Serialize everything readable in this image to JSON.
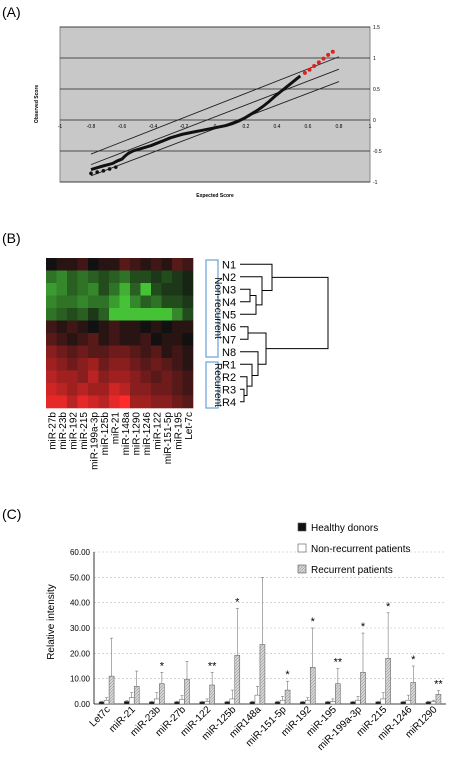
{
  "panels": {
    "a_label": "(A)",
    "b_label": "(B)",
    "c_label": "(C)"
  },
  "chart_data": [
    {
      "type": "scatter",
      "xlabel": "Expected Score",
      "ylabel": "Observed Score",
      "xlim": [
        -1,
        1
      ],
      "ylim": [
        -1,
        1.5
      ],
      "x_ticks": [
        "-1",
        "-0.8",
        "-0.6",
        "-0.4",
        "-0.2",
        "0",
        "0.2",
        "0.4",
        "0.6",
        "0.8",
        "1"
      ],
      "y_ticks": [
        "-1",
        "-0.5",
        "0",
        "0.5",
        "1",
        "1.5"
      ],
      "grid": true,
      "background": "#c8c8c8",
      "colors": {
        "points": "#111111",
        "significant": "#e02020",
        "lines": "#222222"
      },
      "reference_lines": [
        {
          "x": [
            -0.8,
            0.8
          ],
          "y": [
            -0.9,
            0.62
          ]
        },
        {
          "x": [
            -0.8,
            0.8
          ],
          "y": [
            -0.72,
            0.82
          ]
        },
        {
          "x": [
            -0.8,
            0.8
          ],
          "y": [
            -0.55,
            1.02
          ]
        }
      ],
      "curve_points": [
        [
          -0.8,
          -0.8
        ],
        [
          -0.76,
          -0.77
        ],
        [
          -0.72,
          -0.74
        ],
        [
          -0.69,
          -0.72
        ],
        [
          -0.66,
          -0.7
        ],
        [
          -0.63,
          -0.66
        ],
        [
          -0.6,
          -0.63
        ],
        [
          -0.58,
          -0.58
        ],
        [
          -0.56,
          -0.54
        ],
        [
          -0.53,
          -0.5
        ],
        [
          -0.49,
          -0.47
        ],
        [
          -0.45,
          -0.44
        ],
        [
          -0.41,
          -0.41
        ],
        [
          -0.37,
          -0.37
        ],
        [
          -0.33,
          -0.33
        ],
        [
          -0.29,
          -0.29
        ],
        [
          -0.25,
          -0.26
        ],
        [
          -0.21,
          -0.23
        ],
        [
          -0.17,
          -0.21
        ],
        [
          -0.13,
          -0.19
        ],
        [
          -0.09,
          -0.17
        ],
        [
          -0.05,
          -0.15
        ],
        [
          -0.01,
          -0.13
        ],
        [
          0.03,
          -0.11
        ],
        [
          0.07,
          -0.09
        ],
        [
          0.11,
          -0.06
        ],
        [
          0.15,
          -0.02
        ],
        [
          0.19,
          0.03
        ],
        [
          0.23,
          0.09
        ],
        [
          0.27,
          0.15
        ],
        [
          0.31,
          0.22
        ],
        [
          0.35,
          0.3
        ],
        [
          0.39,
          0.39
        ],
        [
          0.43,
          0.47
        ],
        [
          0.47,
          0.55
        ],
        [
          0.51,
          0.63
        ],
        [
          0.55,
          0.71
        ]
      ],
      "significant_points": [
        [
          0.58,
          0.76
        ],
        [
          0.61,
          0.81
        ],
        [
          0.64,
          0.87
        ],
        [
          0.67,
          0.93
        ],
        [
          0.7,
          0.99
        ],
        [
          0.73,
          1.05
        ],
        [
          0.76,
          1.1
        ]
      ],
      "scatter_points": [
        [
          -0.8,
          -0.86
        ],
        [
          -0.76,
          -0.84
        ],
        [
          -0.72,
          -0.82
        ],
        [
          -0.68,
          -0.79
        ],
        [
          -0.64,
          -0.76
        ]
      ]
    },
    {
      "type": "heatmap",
      "columns": [
        "miR-27b",
        "miR-23b",
        "miR-192",
        "miR-215",
        "miR-199a-3p",
        "miR-125b",
        "miR-21",
        "miR-148a",
        "miR-1290",
        "miR-1246",
        "miR-122",
        "miR-151-5p",
        "miR-195",
        "Let-7c"
      ],
      "rows": [
        "N1",
        "N2",
        "N3",
        "N4",
        "N5",
        "N6",
        "N7",
        "N8",
        "R1",
        "R2",
        "R3",
        "R4"
      ],
      "group_labels": [
        "Non-recurrent",
        "Recurrent"
      ],
      "values": [
        [
          0.0,
          0.1,
          0.1,
          0.2,
          0.0,
          0.1,
          0.1,
          0.3,
          0.2,
          0.1,
          0.2,
          0.1,
          0.3,
          0.2
        ],
        [
          -0.5,
          -0.6,
          -0.4,
          -0.5,
          -0.4,
          -0.3,
          -0.4,
          -0.5,
          -0.3,
          -0.3,
          -0.2,
          -0.3,
          -0.2,
          -0.1
        ],
        [
          -0.7,
          -0.6,
          -0.4,
          -0.5,
          -0.6,
          -0.3,
          -0.5,
          -0.8,
          -0.4,
          -0.9,
          -0.3,
          -0.2,
          -0.2,
          -0.1
        ],
        [
          -0.6,
          -0.5,
          -0.5,
          -0.6,
          -0.5,
          -0.5,
          -0.7,
          -0.9,
          -0.6,
          -0.4,
          -0.5,
          -0.3,
          -0.3,
          -0.2
        ],
        [
          -0.5,
          -0.4,
          -0.3,
          -0.4,
          -0.2,
          -0.4,
          -0.9,
          -0.9,
          -0.9,
          -0.9,
          -0.9,
          -0.9,
          -0.6,
          -0.3
        ],
        [
          0.2,
          0.1,
          0.2,
          0.1,
          0.0,
          0.1,
          0.2,
          0.1,
          0.1,
          0.0,
          0.1,
          0.0,
          0.1,
          0.1
        ],
        [
          0.3,
          0.2,
          0.1,
          0.2,
          0.3,
          0.1,
          0.2,
          0.1,
          0.1,
          0.2,
          0.0,
          0.1,
          0.1,
          0.0
        ],
        [
          0.5,
          0.4,
          0.3,
          0.4,
          0.3,
          0.3,
          0.4,
          0.4,
          0.3,
          0.2,
          0.3,
          0.1,
          0.2,
          0.1
        ],
        [
          0.6,
          0.5,
          0.4,
          0.5,
          0.6,
          0.4,
          0.5,
          0.5,
          0.4,
          0.3,
          0.4,
          0.3,
          0.2,
          0.1
        ],
        [
          0.7,
          0.6,
          0.6,
          0.5,
          0.7,
          0.5,
          0.6,
          0.6,
          0.5,
          0.4,
          0.3,
          0.4,
          0.3,
          0.2
        ],
        [
          0.8,
          0.7,
          0.6,
          0.7,
          0.6,
          0.6,
          0.8,
          0.7,
          0.5,
          0.5,
          0.4,
          0.4,
          0.3,
          0.2
        ],
        [
          0.9,
          0.9,
          0.7,
          0.9,
          0.8,
          0.7,
          0.9,
          1.0,
          0.6,
          0.6,
          0.5,
          0.5,
          0.4,
          0.3
        ]
      ],
      "colors": {
        "low": "#4cd63a",
        "mid": "#111111",
        "high": "#ff2a2a",
        "frame": "#6aa0d8"
      }
    },
    {
      "type": "bar",
      "categories": [
        "Let7c",
        "miR-21",
        "miR-23b",
        "miR-27b",
        "miR-122",
        "miR-125b",
        "miR148a",
        "miR-151-5p",
        "miR-192",
        "miR-195",
        "miR-199a-3p",
        "miR-215",
        "miR-1246",
        "miR1290"
      ],
      "series": [
        {
          "name": "Healthy donors",
          "values": [
            0.8,
            1.0,
            0.8,
            0.8,
            0.8,
            0.8,
            0.8,
            0.8,
            0.8,
            0.8,
            0.8,
            0.8,
            0.8,
            0.8
          ],
          "errors": [
            0.3,
            0.3,
            0.3,
            0.3,
            0.3,
            0.3,
            0.3,
            0.3,
            0.3,
            0.3,
            0.3,
            0.3,
            0.3,
            0.3
          ],
          "color": "#111111"
        },
        {
          "name": "Non-recurrent patients",
          "values": [
            1.5,
            2.5,
            2.0,
            1.8,
            1.0,
            2.0,
            3.5,
            1.5,
            1.5,
            1.0,
            1.5,
            2.0,
            1.5,
            1.0
          ],
          "errors": [
            1.0,
            2.0,
            2.5,
            1.5,
            1.0,
            3.5,
            3.5,
            1.5,
            1.0,
            1.0,
            1.5,
            2.5,
            2.0,
            0.5
          ],
          "color": "#ffffff"
        },
        {
          "name": "Recurrent patients",
          "values": [
            11.0,
            7.0,
            8.0,
            9.8,
            7.5,
            19.2,
            23.5,
            5.5,
            14.5,
            8.0,
            12.5,
            18.0,
            8.5,
            3.8
          ],
          "errors": [
            15.0,
            6.0,
            4.5,
            7.0,
            5.0,
            18.5,
            26.5,
            3.5,
            15.5,
            6.0,
            15.5,
            18.0,
            6.5,
            1.5
          ],
          "color": "#cccccc"
        }
      ],
      "significance": [
        "",
        "",
        "*",
        "",
        "**",
        "*",
        "",
        "*",
        "*",
        "**",
        "*",
        "*",
        "*",
        "**"
      ],
      "ylabel": "Relative intensity",
      "xlabel": "",
      "ylim": [
        0,
        60
      ],
      "y_ticks": [
        "0.00",
        "10.00",
        "20.00",
        "30.00",
        "40.00",
        "50.00",
        "60.00"
      ],
      "legend_position": "top-right"
    }
  ]
}
